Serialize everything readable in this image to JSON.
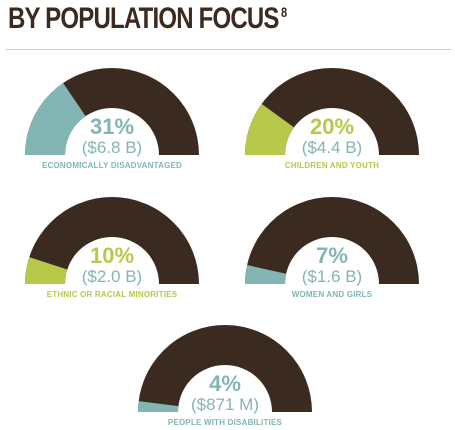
{
  "header": {
    "title": "BY POPULATION FOCUS",
    "footnote": "8"
  },
  "colors": {
    "background": "#3b2a20",
    "teal": "#82b5b3",
    "green": "#b7c84a"
  },
  "chart_data": {
    "type": "gauge",
    "title": "BY POPULATION FOCUS",
    "gauges": [
      {
        "label": "ECONOMICALLY DISADVANTAGED",
        "percent": 31,
        "percent_label": "31%",
        "amount": "($6.8 B)",
        "color": "#82b5b3"
      },
      {
        "label": "CHILDREN AND YOUTH",
        "percent": 20,
        "percent_label": "20%",
        "amount": "($4.4 B)",
        "color": "#b7c84a"
      },
      {
        "label": "ETHNIC OR RACIAL MINORITIES",
        "percent": 10,
        "percent_label": "10%",
        "amount": "($2.0 B)",
        "color": "#b7c84a"
      },
      {
        "label": "WOMEN AND GIRLS",
        "percent": 7,
        "percent_label": "7%",
        "amount": "($1.6 B)",
        "color": "#82b5b3"
      },
      {
        "label": "PEOPLE WITH DISABILITIES",
        "percent": 4,
        "percent_label": "4%",
        "amount": "($871 M)",
        "color": "#82b5b3"
      }
    ]
  }
}
